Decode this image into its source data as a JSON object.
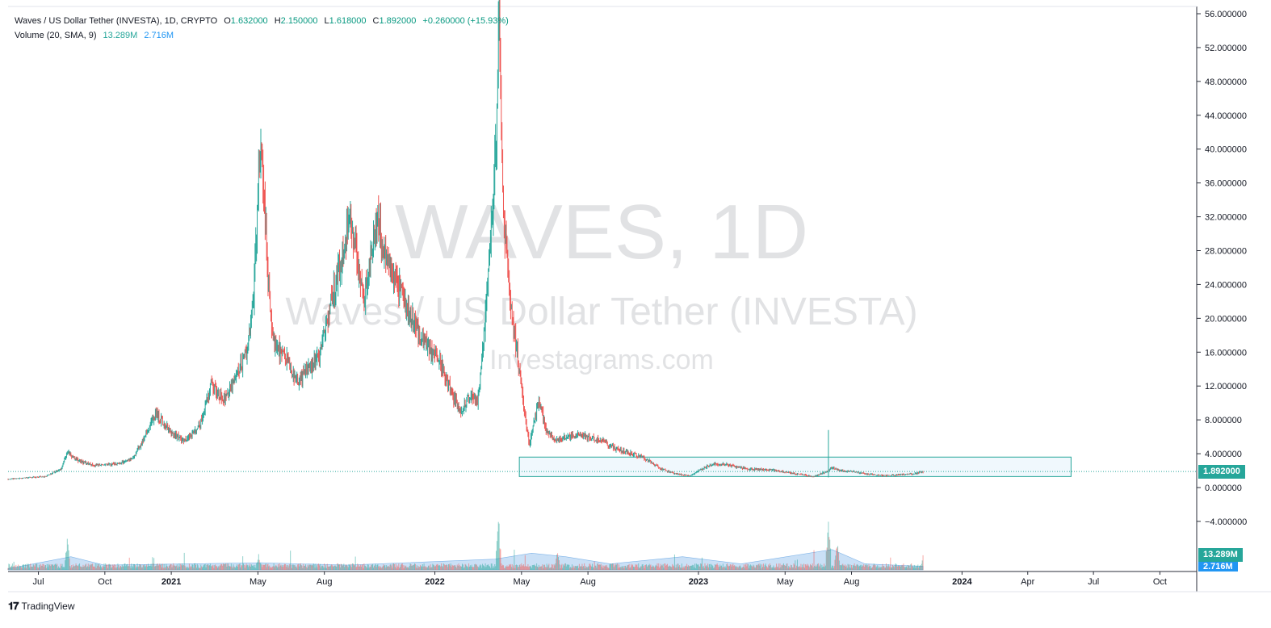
{
  "legend": {
    "symbol": "Waves / US Dollar Tether (INVESTA), 1D, CRYPTO",
    "o_label": "O",
    "o_value": "1.632000",
    "h_label": "H",
    "h_value": "2.150000",
    "l_label": "L",
    "l_value": "1.618000",
    "c_label": "C",
    "c_value": "1.892000",
    "change": "+0.260000 (+15.93%)",
    "volume_label": "Volume (20, SMA, 9)",
    "volume_value": "13.289M",
    "volume_sma": "2.716M"
  },
  "watermark": {
    "line1": "WAVES, 1D",
    "line2": "Waves / US Dollar Tether (INVESTA)",
    "line3": "Investagrams.com"
  },
  "footer": {
    "logo_text": "𝟏𝟕",
    "brand": "TradingView"
  },
  "colors": {
    "up": "#26a69a",
    "down": "#ef5350",
    "volume_fill": "#9fc6ef",
    "box_border": "#26a69a",
    "box_fill": "#e6f3fb",
    "price_tag": "#26a69a",
    "volume_tag": "#26a69a",
    "sma_tag": "#2196f3"
  },
  "chart_data": {
    "type": "candlestick",
    "title": "Waves / US Dollar Tether (INVESTA), 1D, CRYPTO",
    "y_axis": {
      "range": [
        -6.5,
        57
      ],
      "ticks": [
        56,
        52,
        48,
        44,
        40,
        36,
        32,
        28,
        24,
        20,
        16,
        12,
        8,
        4,
        0,
        -4
      ],
      "tick_labels": [
        "56.000000",
        "52.000000",
        "48.000000",
        "44.000000",
        "40.000000",
        "36.000000",
        "32.000000",
        "28.000000",
        "24.000000",
        "20.000000",
        "16.000000",
        "12.000000",
        "8.000000",
        "4.000000",
        "0.000000",
        "−4.000000"
      ]
    },
    "x_axis": {
      "range": [
        "2020-05-20",
        "2024-11-21"
      ],
      "ticks": [
        {
          "date": "2020-07-01",
          "label": "Jul"
        },
        {
          "date": "2020-10-01",
          "label": "Oct"
        },
        {
          "date": "2021-01-01",
          "label": "2021"
        },
        {
          "date": "2021-05-01",
          "label": "May"
        },
        {
          "date": "2021-08-01",
          "label": "Aug"
        },
        {
          "date": "2022-01-01",
          "label": "2022"
        },
        {
          "date": "2022-05-01",
          "label": "May"
        },
        {
          "date": "2022-08-01",
          "label": "Aug"
        },
        {
          "date": "2023-01-01",
          "label": "2023"
        },
        {
          "date": "2023-05-01",
          "label": "May"
        },
        {
          "date": "2023-08-01",
          "label": "Aug"
        },
        {
          "date": "2024-01-01",
          "label": "2024"
        },
        {
          "date": "2024-04-01",
          "label": "Apr"
        },
        {
          "date": "2024-07-01",
          "label": "Jul"
        },
        {
          "date": "2024-10-01",
          "label": "Oct"
        }
      ]
    },
    "price_series": [
      [
        "2020-05-20",
        1.0
      ],
      [
        "2020-07-10",
        1.3
      ],
      [
        "2020-08-01",
        2.2
      ],
      [
        "2020-08-10",
        4.2
      ],
      [
        "2020-08-25",
        3.2
      ],
      [
        "2020-09-15",
        2.6
      ],
      [
        "2020-10-20",
        2.8
      ],
      [
        "2020-11-10",
        3.6
      ],
      [
        "2020-12-01",
        7.0
      ],
      [
        "2020-12-10",
        8.8
      ],
      [
        "2020-12-31",
        6.5
      ],
      [
        "2021-01-20",
        5.5
      ],
      [
        "2021-02-10",
        7.5
      ],
      [
        "2021-02-25",
        12.0
      ],
      [
        "2021-03-15",
        10.5
      ],
      [
        "2021-04-01",
        13.0
      ],
      [
        "2021-04-15",
        16.0
      ],
      [
        "2021-04-25",
        22.0
      ],
      [
        "2021-05-02",
        38.0
      ],
      [
        "2021-05-05",
        41.0
      ],
      [
        "2021-05-10",
        33.0
      ],
      [
        "2021-05-20",
        18.0
      ],
      [
        "2021-06-10",
        15.0
      ],
      [
        "2021-06-25",
        12.5
      ],
      [
        "2021-07-10",
        14.0
      ],
      [
        "2021-07-25",
        15.5
      ],
      [
        "2021-08-10",
        22.0
      ],
      [
        "2021-08-25",
        27.0
      ],
      [
        "2021-09-05",
        32.5
      ],
      [
        "2021-09-15",
        27.0
      ],
      [
        "2021-09-25",
        22.0
      ],
      [
        "2021-10-05",
        28.0
      ],
      [
        "2021-10-15",
        31.5
      ],
      [
        "2021-10-25",
        27.5
      ],
      [
        "2021-11-10",
        24.0
      ],
      [
        "2021-11-25",
        21.0
      ],
      [
        "2021-12-10",
        18.0
      ],
      [
        "2021-12-25",
        16.5
      ],
      [
        "2022-01-10",
        14.5
      ],
      [
        "2022-01-25",
        11.0
      ],
      [
        "2022-02-05",
        9.0
      ],
      [
        "2022-02-20",
        11.0
      ],
      [
        "2022-03-01",
        10.0
      ],
      [
        "2022-03-10",
        18.0
      ],
      [
        "2022-03-20",
        30.0
      ],
      [
        "2022-03-28",
        44.0
      ],
      [
        "2022-03-31",
        56.5
      ],
      [
        "2022-04-05",
        34.0
      ],
      [
        "2022-04-15",
        22.0
      ],
      [
        "2022-04-25",
        16.0
      ],
      [
        "2022-05-05",
        9.0
      ],
      [
        "2022-05-12",
        5.0
      ],
      [
        "2022-05-25",
        10.5
      ],
      [
        "2022-06-05",
        6.5
      ],
      [
        "2022-06-20",
        5.5
      ],
      [
        "2022-07-10",
        6.2
      ],
      [
        "2022-08-01",
        6.0
      ],
      [
        "2022-08-20",
        5.5
      ],
      [
        "2022-09-10",
        4.5
      ],
      [
        "2022-10-01",
        4.0
      ],
      [
        "2022-10-20",
        3.4
      ],
      [
        "2022-11-10",
        2.2
      ],
      [
        "2022-12-01",
        1.6
      ],
      [
        "2022-12-20",
        1.4
      ],
      [
        "2023-01-10",
        2.4
      ],
      [
        "2023-01-25",
        2.8
      ],
      [
        "2023-02-10",
        2.7
      ],
      [
        "2023-03-10",
        2.2
      ],
      [
        "2023-04-10",
        2.1
      ],
      [
        "2023-05-10",
        1.7
      ],
      [
        "2023-06-10",
        1.3
      ],
      [
        "2023-06-25",
        1.8
      ],
      [
        "2023-07-05",
        2.3
      ],
      [
        "2023-07-20",
        2.0
      ],
      [
        "2023-08-10",
        1.8
      ],
      [
        "2023-09-01",
        1.5
      ],
      [
        "2023-09-20",
        1.4
      ],
      [
        "2023-10-05",
        1.5
      ],
      [
        "2023-10-25",
        1.6
      ],
      [
        "2023-11-08",
        1.9
      ]
    ],
    "last_price": 1.892,
    "last_price_label": "1.892000",
    "range_box": {
      "from": "2022-04-28",
      "to": "2024-05-31",
      "top": 3.6,
      "bottom": 1.3
    },
    "volume": {
      "last": "13.289M",
      "sma": "2.716M",
      "spikes": [
        [
          "2020-08-10",
          0.55
        ],
        [
          "2021-05-02",
          0.3
        ],
        [
          "2022-03-30",
          1.0
        ],
        [
          "2022-06-20",
          0.35
        ],
        [
          "2023-06-30",
          0.9
        ],
        [
          "2023-07-12",
          0.6
        ],
        [
          "2023-11-08",
          0.25
        ]
      ],
      "sma_series": [
        [
          "2020-05-20",
          0.02
        ],
        [
          "2020-08-15",
          0.22
        ],
        [
          "2020-09-30",
          0.08
        ],
        [
          "2021-05-05",
          0.12
        ],
        [
          "2021-09-01",
          0.08
        ],
        [
          "2022-03-25",
          0.18
        ],
        [
          "2022-05-15",
          0.28
        ],
        [
          "2022-07-01",
          0.22
        ],
        [
          "2022-09-01",
          0.1
        ],
        [
          "2022-12-10",
          0.22
        ],
        [
          "2023-03-01",
          0.1
        ],
        [
          "2023-07-05",
          0.34
        ],
        [
          "2023-08-20",
          0.1
        ],
        [
          "2023-11-08",
          0.06
        ]
      ]
    },
    "grid": false,
    "price_scale": "right"
  }
}
